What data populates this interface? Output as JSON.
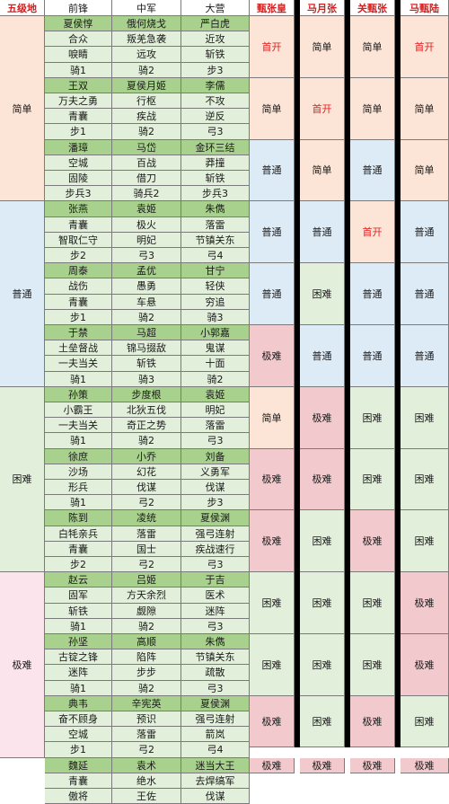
{
  "headers": [
    "五级地",
    "前锋",
    "中军",
    "大营",
    "甄张皇",
    "马月张",
    "关甄张",
    "马甄陆"
  ],
  "zones": [
    {
      "label": "简单",
      "color": "#fce4d6",
      "rows": 12
    },
    {
      "label": "普通",
      "color": "#ddebf7",
      "rows": 12
    },
    {
      "label": "困难",
      "color": "#e2efda",
      "rows": 12
    },
    {
      "label": "极难",
      "color": "#fce4ec",
      "rows": 12
    }
  ],
  "groups": [
    {
      "rows": [
        [
          "夏侯惇",
          "俄何烧戈",
          "严白虎"
        ],
        [
          "合众",
          "叛羌急袭",
          "近攻"
        ],
        [
          "唳睛",
          "远攻",
          "斩铁"
        ],
        [
          "骑1",
          "骑2",
          "步3"
        ]
      ],
      "results": [
        "首开",
        "简单",
        "简单",
        "首开"
      ],
      "colors": [
        "#fce4d6",
        "#fce4d6",
        "#fce4d6",
        "#fce4d6"
      ],
      "red": [
        true,
        false,
        false,
        true
      ]
    },
    {
      "rows": [
        [
          "王双",
          "夏侯月姬",
          "李儒"
        ],
        [
          "万夫之勇",
          "行枢",
          "不攻"
        ],
        [
          "青囊",
          "疾战",
          "逆反"
        ],
        [
          "步1",
          "骑2",
          "弓3"
        ]
      ],
      "results": [
        "简单",
        "首开",
        "简单",
        "简单"
      ],
      "colors": [
        "#fce4d6",
        "#fce4d6",
        "#fce4d6",
        "#fce4d6"
      ],
      "red": [
        false,
        true,
        false,
        false
      ]
    },
    {
      "rows": [
        [
          "潘璋",
          "马岱",
          "金环三结"
        ],
        [
          "空城",
          "百战",
          "莽撞"
        ],
        [
          "固陵",
          "借刀",
          "斩铁"
        ],
        [
          "步兵3",
          "骑兵2",
          "步兵3"
        ]
      ],
      "results": [
        "普通",
        "简单",
        "普通",
        "简单"
      ],
      "colors": [
        "#ddebf7",
        "#fce4d6",
        "#ddebf7",
        "#fce4d6"
      ],
      "red": [
        false,
        false,
        false,
        false
      ]
    },
    {
      "rows": [
        [
          "张燕",
          "袁姬",
          "朱儁"
        ],
        [
          "青囊",
          "极火",
          "落雷"
        ],
        [
          "智取仁守",
          "明妃",
          "节镇关东"
        ],
        [
          "步2",
          "弓3",
          "弓4"
        ]
      ],
      "results": [
        "普通",
        "普通",
        "首开",
        "普通"
      ],
      "colors": [
        "#ddebf7",
        "#ddebf7",
        "#fce4d6",
        "#ddebf7"
      ],
      "red": [
        false,
        false,
        true,
        false
      ]
    },
    {
      "rows": [
        [
          "周泰",
          "孟优",
          "甘宁"
        ],
        [
          "战伤",
          "愚勇",
          "轻侠"
        ],
        [
          "青囊",
          "车悬",
          "穷追"
        ],
        [
          "步1",
          "骑2",
          "骑3"
        ]
      ],
      "results": [
        "普通",
        "困难",
        "普通",
        "普通"
      ],
      "colors": [
        "#ddebf7",
        "#e2efda",
        "#ddebf7",
        "#ddebf7"
      ],
      "red": [
        false,
        false,
        false,
        false
      ]
    },
    {
      "rows": [
        [
          "于禁",
          "马超",
          "小郭嘉"
        ],
        [
          "土垒督战",
          "锦马掇敌",
          "鬼谋"
        ],
        [
          "一夫当关",
          "斩铁",
          "十面"
        ],
        [
          "骑1",
          "骑3",
          "骑2"
        ]
      ],
      "results": [
        "极难",
        "普通",
        "普通",
        "普通"
      ],
      "colors": [
        "#f2c9cd",
        "#ddebf7",
        "#ddebf7",
        "#ddebf7"
      ],
      "red": [
        false,
        false,
        false,
        false
      ]
    },
    {
      "rows": [
        [
          "孙策",
          "步度根",
          "袁姬"
        ],
        [
          "小霸王",
          "北狄五伐",
          "明妃"
        ],
        [
          "一夫当关",
          "奇正之势",
          "落雷"
        ],
        [
          "骑1",
          "骑2",
          "弓3"
        ]
      ],
      "results": [
        "简单",
        "极难",
        "困难",
        "困难"
      ],
      "colors": [
        "#fce4d6",
        "#f2c9cd",
        "#e2efda",
        "#e2efda"
      ],
      "red": [
        false,
        false,
        false,
        false
      ]
    },
    {
      "rows": [
        [
          "徐庶",
          "小乔",
          "刘备"
        ],
        [
          "沙场",
          "幻花",
          "义勇军"
        ],
        [
          "形兵",
          "伐谋",
          "伐谋"
        ],
        [
          "骑1",
          "弓2",
          "步3"
        ]
      ],
      "results": [
        "极难",
        "极难",
        "困难",
        "困难"
      ],
      "colors": [
        "#f2c9cd",
        "#f2c9cd",
        "#e2efda",
        "#e2efda"
      ],
      "red": [
        false,
        false,
        false,
        false
      ]
    },
    {
      "rows": [
        [
          "陈到",
          "凌统",
          "夏侯渊"
        ],
        [
          "白牦亲兵",
          "落雷",
          "强弓连射"
        ],
        [
          "青囊",
          "国士",
          "疾战速行"
        ],
        [
          "步2",
          "弓2",
          "弓3"
        ]
      ],
      "results": [
        "极难",
        "困难",
        "极难",
        "困难"
      ],
      "colors": [
        "#f2c9cd",
        "#e2efda",
        "#f2c9cd",
        "#e2efda"
      ],
      "red": [
        false,
        false,
        false,
        false
      ]
    },
    {
      "rows": [
        [
          "赵云",
          "吕姬",
          "于吉"
        ],
        [
          "固军",
          "方天余烈",
          "医术"
        ],
        [
          "斩铁",
          "觑隙",
          "迷阵"
        ],
        [
          "骑1",
          "骑2",
          "弓3"
        ]
      ],
      "results": [
        "困难",
        "困难",
        "困难",
        "极难"
      ],
      "colors": [
        "#e2efda",
        "#e2efda",
        "#e2efda",
        "#f2c9cd"
      ],
      "red": [
        false,
        false,
        false,
        false
      ]
    },
    {
      "rows": [
        [
          "孙坚",
          "高顺",
          "朱儁"
        ],
        [
          "古锭之锋",
          "陷阵",
          "节镇关东"
        ],
        [
          "迷阵",
          "步步",
          "疏散"
        ],
        [
          "骑1",
          "骑2",
          "弓3"
        ]
      ],
      "results": [
        "困难",
        "困难",
        "困难",
        "极难"
      ],
      "colors": [
        "#e2efda",
        "#e2efda",
        "#e2efda",
        "#f2c9cd"
      ],
      "red": [
        false,
        false,
        false,
        false
      ]
    },
    {
      "rows": [
        [
          "典韦",
          "辛宪英",
          "夏侯渊"
        ],
        [
          "奋不顾身",
          "预识",
          "强弓连射"
        ],
        [
          "空城",
          "落雷",
          "箭岚"
        ],
        [
          "步1",
          "弓2",
          "弓4"
        ]
      ],
      "results": [
        "极难",
        "困难",
        "极难",
        "困难"
      ],
      "colors": [
        "#f2c9cd",
        "#e2efda",
        "#f2c9cd",
        "#e2efda"
      ],
      "red": [
        false,
        false,
        false,
        false
      ]
    },
    {
      "rows": [
        [
          "魏延",
          "袁术",
          "迷当大王"
        ],
        [
          "青囊",
          "绝水",
          "去焊缟军"
        ],
        [
          "傲将",
          "王佐",
          "伐谋"
        ]
      ],
      "results": [
        "极难",
        "极难",
        "极难",
        "极难"
      ],
      "colors": [
        "#f2c9cd",
        "#f2c9cd",
        "#f2c9cd",
        "#f2c9cd"
      ],
      "red": [
        false,
        false,
        false,
        false
      ]
    }
  ]
}
